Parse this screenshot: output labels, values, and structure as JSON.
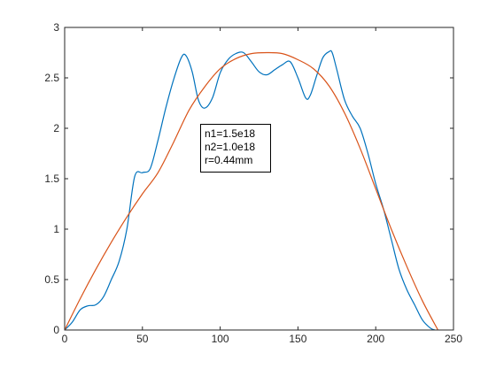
{
  "chart_data": {
    "type": "line",
    "xlim": [
      0,
      250
    ],
    "ylim": [
      0,
      3
    ],
    "xticks": [
      "0",
      "50",
      "100",
      "150",
      "200",
      "250"
    ],
    "yticks": [
      "0",
      "0.5",
      "1",
      "1.5",
      "2",
      "2.5",
      "3"
    ],
    "grid": false,
    "annotation": [
      "n1=1.5e18",
      "n2=1.0e18",
      "r=0.44mm"
    ],
    "series": [
      {
        "color": "#0072BD",
        "x": [
          0,
          5,
          10,
          15,
          20,
          25,
          30,
          35,
          40,
          45,
          50,
          55,
          60,
          65,
          70,
          75,
          78,
          82,
          86,
          90,
          95,
          100,
          105,
          110,
          115,
          120,
          125,
          130,
          135,
          140,
          145,
          150,
          155,
          158,
          162,
          166,
          170,
          172,
          175,
          180,
          185,
          190,
          195,
          200,
          205,
          210,
          215,
          220,
          225,
          230,
          235,
          238
        ],
        "y": [
          0,
          0.08,
          0.2,
          0.24,
          0.25,
          0.33,
          0.5,
          0.68,
          1.0,
          1.52,
          1.56,
          1.6,
          1.88,
          2.2,
          2.48,
          2.7,
          2.72,
          2.56,
          2.28,
          2.2,
          2.3,
          2.55,
          2.68,
          2.74,
          2.75,
          2.66,
          2.56,
          2.53,
          2.58,
          2.63,
          2.66,
          2.5,
          2.3,
          2.33,
          2.52,
          2.7,
          2.76,
          2.75,
          2.58,
          2.28,
          2.12,
          2.0,
          1.75,
          1.45,
          1.2,
          0.9,
          0.6,
          0.4,
          0.25,
          0.1,
          0.02,
          0
        ]
      },
      {
        "color": "#D95319",
        "x": [
          0,
          10,
          20,
          30,
          40,
          50,
          60,
          70,
          80,
          90,
          100,
          110,
          120,
          130,
          140,
          150,
          160,
          170,
          180,
          190,
          200,
          210,
          220,
          230,
          240
        ],
        "y": [
          0,
          0.31,
          0.6,
          0.87,
          1.12,
          1.35,
          1.56,
          1.86,
          2.18,
          2.41,
          2.59,
          2.69,
          2.74,
          2.75,
          2.74,
          2.68,
          2.59,
          2.42,
          2.15,
          1.8,
          1.4,
          1.0,
          0.63,
          0.29,
          0
        ]
      }
    ]
  }
}
